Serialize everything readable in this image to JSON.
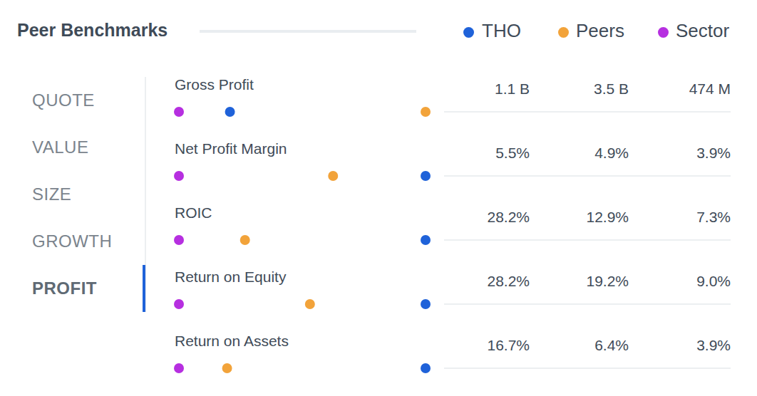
{
  "chart_data": {
    "type": "dot",
    "title": "Peer Benchmarks",
    "menu": [
      "QUOTE",
      "VALUE",
      "SIZE",
      "GROWTH",
      "PROFIT"
    ],
    "active": "PROFIT",
    "series": [
      {
        "name": "THO",
        "color": "#1f62d9"
      },
      {
        "name": "Peers",
        "color": "#f2a33a"
      },
      {
        "name": "Sector",
        "color": "#b62fe0"
      }
    ],
    "rows": [
      {
        "label": "Gross Profit",
        "values": [
          1100000000,
          3500000000,
          474000000
        ],
        "value_labels": [
          "1.1 B",
          "3.5 B",
          "474 M"
        ]
      },
      {
        "label": "Net Profit Margin",
        "values": [
          5.5,
          4.9,
          3.9
        ],
        "value_labels": [
          "5.5%",
          "4.9%",
          "3.9%"
        ]
      },
      {
        "label": "ROIC",
        "values": [
          28.2,
          12.9,
          7.3
        ],
        "value_labels": [
          "28.2%",
          "12.9%",
          "7.3%"
        ]
      },
      {
        "label": "Return on Equity",
        "values": [
          28.2,
          19.2,
          9.0
        ],
        "value_labels": [
          "28.2%",
          "19.2%",
          "9.0%"
        ]
      },
      {
        "label": "Return on Assets",
        "values": [
          16.7,
          6.4,
          3.9
        ],
        "value_labels": [
          "16.7%",
          "6.4%",
          "3.9%"
        ]
      }
    ],
    "tick_labels": false
  }
}
